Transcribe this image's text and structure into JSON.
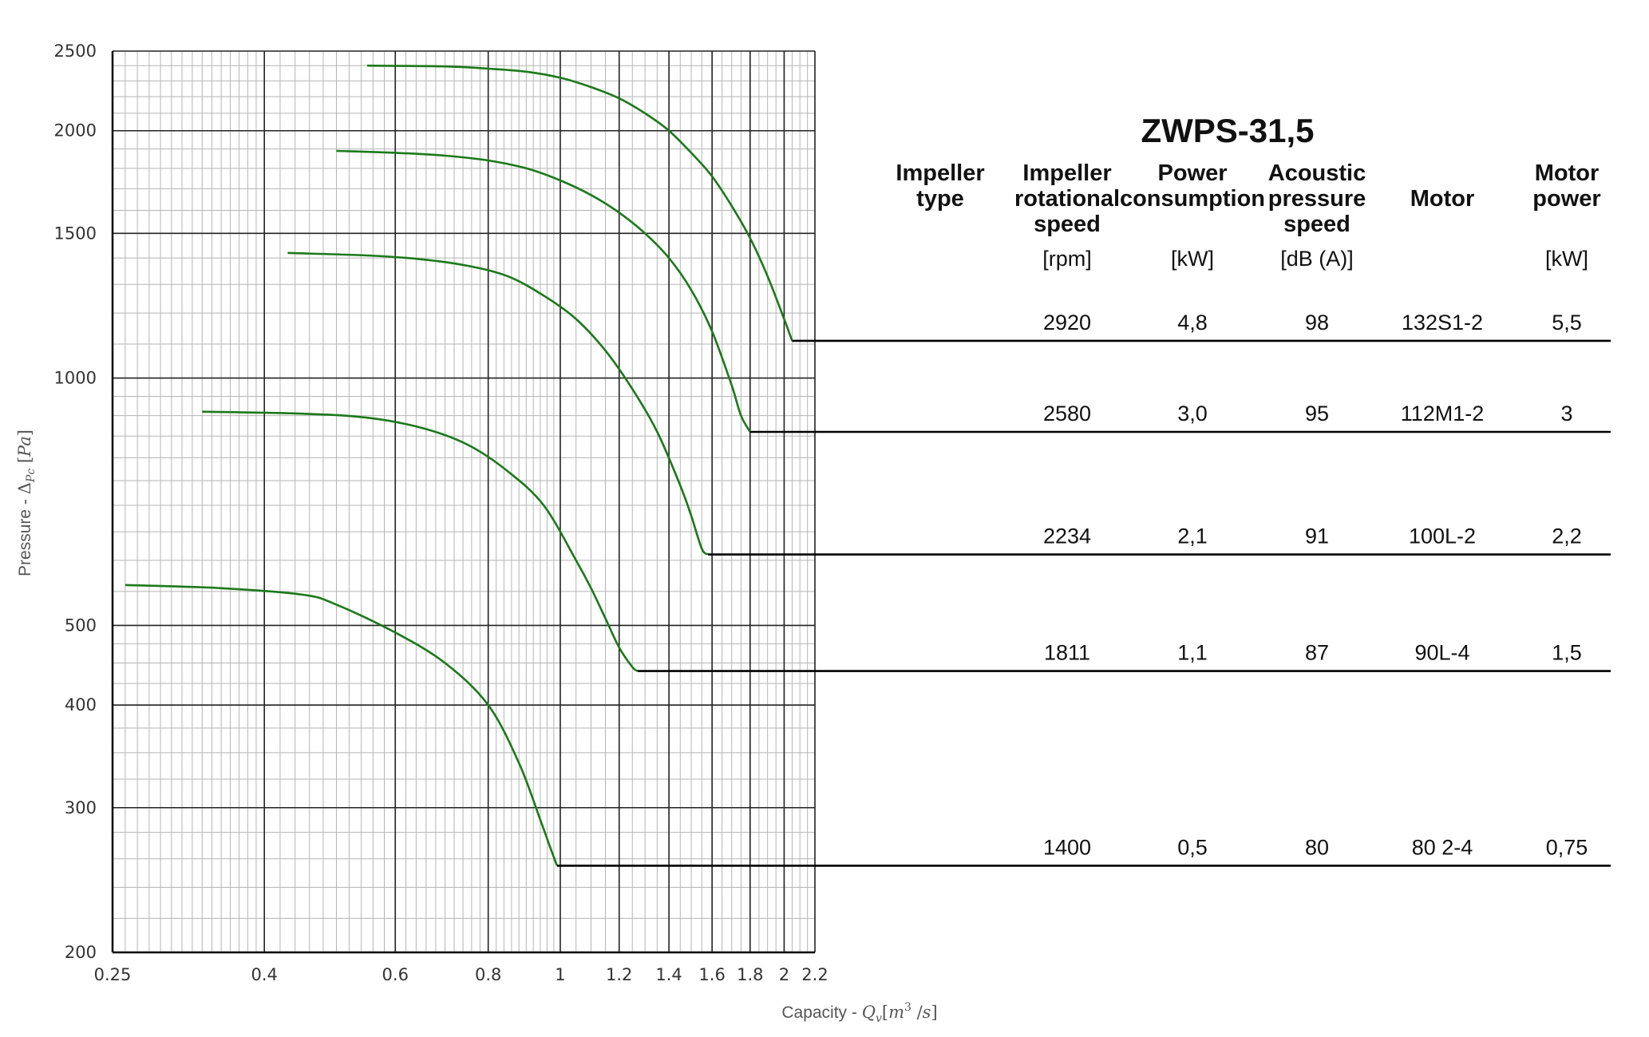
{
  "chart_data": {
    "type": "line",
    "title": "ZWPS-31,5",
    "xlabel": "Capacity - Q_v [m^3 /s]",
    "ylabel": "Pressure - Δ_Pc [Pa]",
    "x_scale": "log",
    "y_scale": "log",
    "xlim": [
      0.25,
      2.2
    ],
    "ylim": [
      200,
      2500
    ],
    "x_ticks": [
      0.25,
      0.4,
      0.6,
      0.8,
      1,
      1.2,
      1.4,
      1.6,
      1.8,
      2,
      2.2
    ],
    "y_ticks": [
      200,
      300,
      400,
      500,
      1000,
      1500,
      2000,
      2500
    ],
    "grid": true,
    "line_color": "#1a7a1a",
    "series": [
      {
        "x": [
          0.55,
          0.7,
          0.8,
          0.9,
          1.0,
          1.1,
          1.2,
          1.3,
          1.4,
          1.5,
          1.6,
          1.7,
          1.8,
          1.9,
          2.0,
          2.05
        ],
        "y": [
          2400,
          2395,
          2380,
          2360,
          2320,
          2260,
          2190,
          2100,
          2000,
          1880,
          1760,
          1620,
          1480,
          1330,
          1180,
          1110
        ]
      },
      {
        "x": [
          0.5,
          0.6,
          0.7,
          0.8,
          0.9,
          1.0,
          1.1,
          1.2,
          1.3,
          1.4,
          1.5,
          1.6,
          1.7,
          1.75,
          1.8
        ],
        "y": [
          1890,
          1880,
          1865,
          1840,
          1800,
          1740,
          1670,
          1590,
          1500,
          1400,
          1280,
          1140,
          980,
          900,
          860
        ]
      },
      {
        "x": [
          0.43,
          0.55,
          0.65,
          0.75,
          0.85,
          0.95,
          1.05,
          1.15,
          1.25,
          1.35,
          1.45,
          1.5,
          1.55,
          1.58
        ],
        "y": [
          1420,
          1410,
          1395,
          1370,
          1330,
          1260,
          1180,
          1080,
          970,
          860,
          740,
          680,
          620,
          610
        ]
      },
      {
        "x": [
          0.33,
          0.45,
          0.55,
          0.65,
          0.75,
          0.85,
          0.95,
          1.05,
          1.1,
          1.15,
          1.2,
          1.25,
          1.27
        ],
        "y": [
          910,
          905,
          895,
          870,
          830,
          770,
          700,
          600,
          555,
          510,
          470,
          445,
          440
        ]
      },
      {
        "x": [
          0.26,
          0.35,
          0.45,
          0.5,
          0.6,
          0.7,
          0.8,
          0.88,
          0.94,
          0.97,
          0.99
        ],
        "y": [
          560,
          555,
          545,
          530,
          490,
          450,
          400,
          340,
          290,
          268,
          255
        ]
      }
    ],
    "table": {
      "headers": [
        [
          "Impeller",
          "type"
        ],
        [
          "Impeller",
          "rotational",
          "speed"
        ],
        [
          "Power",
          "consumption"
        ],
        [
          "Acoustic",
          "pressure",
          "speed"
        ],
        [
          "Motor"
        ],
        [
          "Motor",
          "power"
        ]
      ],
      "units": [
        "",
        "[rpm]",
        "[kW]",
        "[dB (A)]",
        "",
        "[kW]"
      ],
      "rows": [
        {
          "rpm": "2920",
          "power": "4,8",
          "db": "98",
          "motor": "132S1-2",
          "motor_power": "5,5"
        },
        {
          "rpm": "2580",
          "power": "3,0",
          "db": "95",
          "motor": "112M1-2",
          "motor_power": "3"
        },
        {
          "rpm": "2234",
          "power": "2,1",
          "db": "91",
          "motor": "100L-2",
          "motor_power": "2,2"
        },
        {
          "rpm": "1811",
          "power": "1,1",
          "db": "87",
          "motor": "90L-4",
          "motor_power": "1,5"
        },
        {
          "rpm": "1400",
          "power": "0,5",
          "db": "80",
          "motor": "80 2-4",
          "motor_power": "0,75"
        }
      ]
    }
  }
}
